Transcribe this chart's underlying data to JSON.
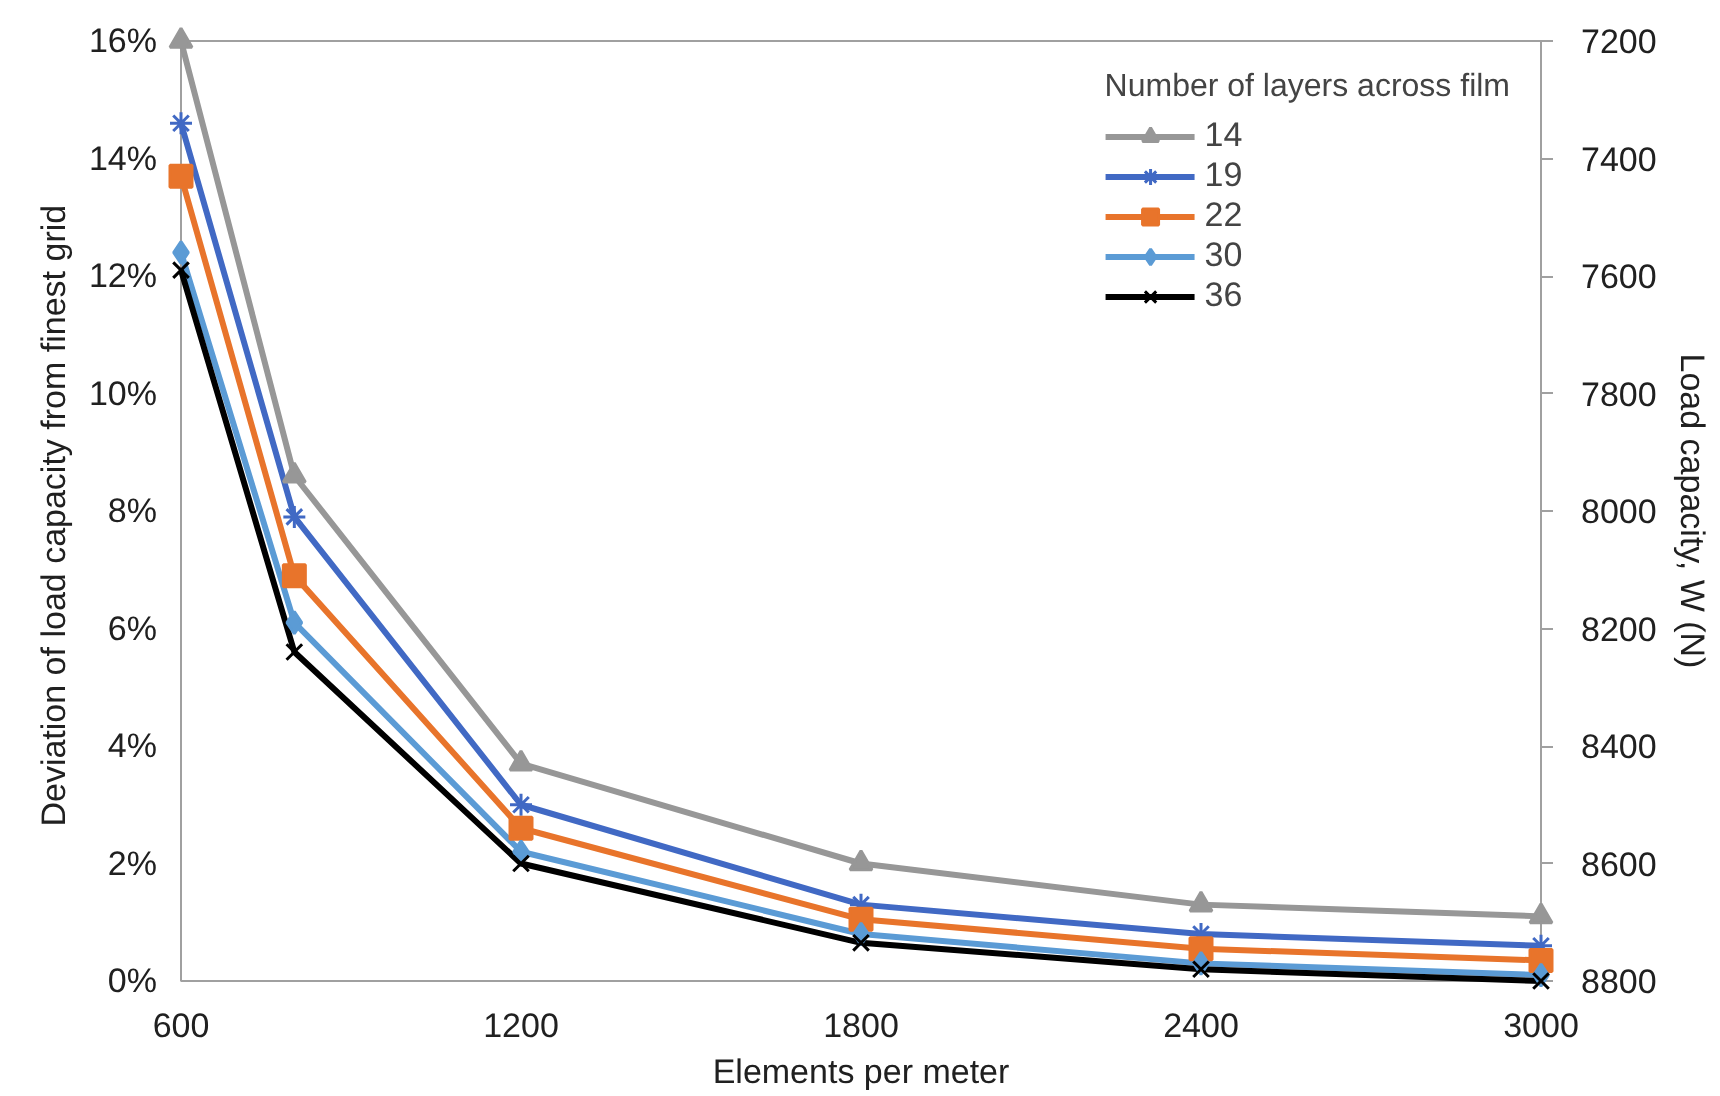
{
  "chart_data": {
    "type": "line",
    "xlabel": "Elements per meter",
    "ylabel": "Deviation of load capacity from finest  grid",
    "y2label": "Load capacity, W (N)",
    "legend_title": "Number of layers across film",
    "legend": "top right",
    "grid": false,
    "line_style": "solid",
    "x": [
      600,
      800,
      1200,
      1800,
      2400,
      3000
    ],
    "xlim": [
      600,
      3000
    ],
    "xticks": [
      600,
      1200,
      1800,
      2400,
      3000
    ],
    "ylim": [
      0,
      16
    ],
    "yticks": [
      {
        "value": 0,
        "label": "0%"
      },
      {
        "value": 2,
        "label": "2%"
      },
      {
        "value": 4,
        "label": "4%"
      },
      {
        "value": 6,
        "label": "6%"
      },
      {
        "value": 8,
        "label": "8%"
      },
      {
        "value": 10,
        "label": "10%"
      },
      {
        "value": 12,
        "label": "12%"
      },
      {
        "value": 14,
        "label": "14%"
      },
      {
        "value": 16,
        "label": "16%"
      }
    ],
    "y2lim": [
      8800,
      7200
    ],
    "y2ticks": [
      7200,
      7400,
      7600,
      7800,
      8000,
      8200,
      8400,
      8600,
      8800
    ],
    "series": [
      {
        "name": "14",
        "color": "#979797",
        "marker": "triangle",
        "values": [
          16,
          8.6,
          3.7,
          2.0,
          1.3,
          1.1
        ]
      },
      {
        "name": "19",
        "color": "#4169c4",
        "marker": "cross",
        "values": [
          14.6,
          7.9,
          3.0,
          1.3,
          0.8,
          0.6
        ]
      },
      {
        "name": "22",
        "color": "#e8742b",
        "marker": "square",
        "values": [
          13.7,
          6.9,
          2.6,
          1.05,
          0.55,
          0.35
        ]
      },
      {
        "name": "30",
        "color": "#5b9bd5",
        "marker": "diamond",
        "values": [
          12.4,
          6.1,
          2.2,
          0.8,
          0.3,
          0.1
        ]
      },
      {
        "name": "36",
        "color": "#000000",
        "marker": "cross",
        "values": [
          12.1,
          5.6,
          2.0,
          0.65,
          0.2,
          0.0
        ]
      }
    ]
  }
}
